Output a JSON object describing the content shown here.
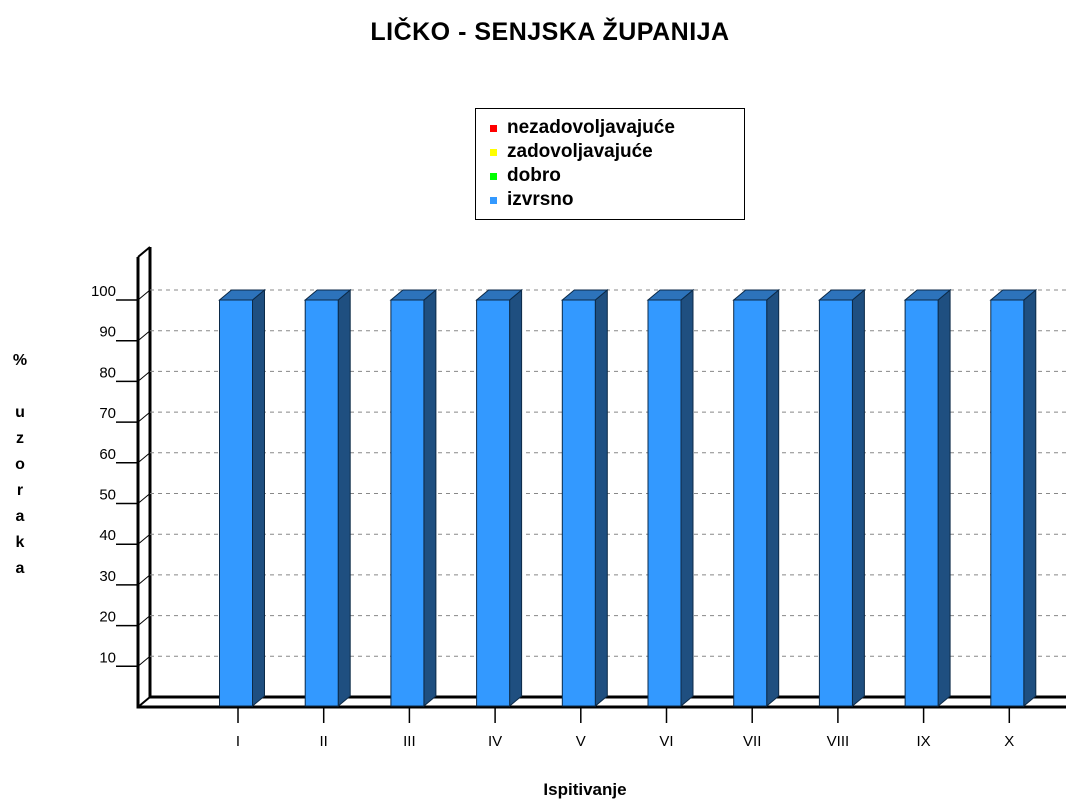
{
  "chart_data": {
    "type": "bar",
    "title": "LIČKO - SENJSKA ŽUPANIJA",
    "xlabel": "Ispitivanje",
    "ylabel": [
      "%",
      "u",
      "z",
      "o",
      "r",
      "a",
      "k",
      "a"
    ],
    "categories": [
      "I",
      "II",
      "III",
      "IV",
      "V",
      "VI",
      "VII",
      "VIII",
      "IX",
      "X"
    ],
    "ylim": [
      0,
      100
    ],
    "yticks": [
      10,
      20,
      30,
      40,
      50,
      60,
      70,
      80,
      90,
      100
    ],
    "grid": true,
    "legend_position": "top-center",
    "legend": [
      {
        "label": "nezadovoljavajuće",
        "color": "#ff0000"
      },
      {
        "label": "zadovoljavajuće",
        "color": "#ffff00"
      },
      {
        "label": "dobro",
        "color": "#00ff00"
      },
      {
        "label": "izvrsno",
        "color": "#3399ff"
      }
    ],
    "series": [
      {
        "name": "izvrsno",
        "color": "#3399ff",
        "values": [
          100,
          100,
          100,
          100,
          100,
          100,
          100,
          100,
          100,
          100
        ]
      }
    ]
  }
}
